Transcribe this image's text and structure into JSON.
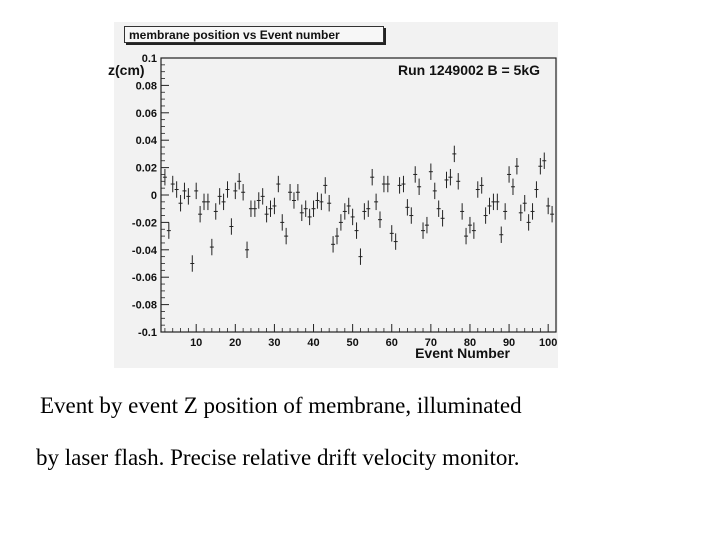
{
  "caption": {
    "line1": "Event by event Z position of membrane, illuminated",
    "line2": "by laser flash. Precise relative drift velocity monitor."
  },
  "chart_data": {
    "type": "scatter",
    "title": "membrane position vs Event number",
    "annotation": "Run 1249002 B = 5kG",
    "xlabel": "Event Number",
    "ylabel": "z(cm)",
    "xlim": [
      1,
      102
    ],
    "ylim": [
      -0.1,
      0.1
    ],
    "x_ticks": [
      "10",
      "20",
      "30",
      "40",
      "50",
      "60",
      "70",
      "80",
      "90",
      "100"
    ],
    "y_ticks": [
      "0.1",
      "0.08",
      "0.06",
      "0.04",
      "0.02",
      "0",
      "-0.02",
      "-0.04",
      "-0.06",
      "-0.08",
      "-0.1"
    ],
    "error_bars": true,
    "grid": false,
    "series": [
      {
        "x": [
          2,
          3,
          4,
          5,
          6,
          7,
          8,
          9,
          10,
          11,
          12,
          13,
          14,
          15,
          16,
          17,
          18,
          19,
          20,
          21,
          22,
          23,
          24,
          25,
          26,
          27,
          28,
          29,
          30,
          31,
          32,
          33,
          34,
          35,
          36,
          37,
          38,
          39,
          40,
          41,
          42,
          43,
          44,
          45,
          46,
          47,
          48,
          49,
          50,
          51,
          52,
          53,
          54,
          55,
          56,
          57,
          58,
          59,
          60,
          61,
          62,
          63,
          64,
          65,
          66,
          67,
          68,
          69,
          70,
          71,
          72,
          73,
          74,
          75,
          76,
          77,
          78,
          79,
          80,
          81,
          82,
          83,
          84,
          85,
          86,
          87,
          88,
          89,
          90,
          91,
          92,
          93,
          94,
          95,
          96,
          97,
          98,
          99,
          100,
          101
        ],
        "y": [
          0.013,
          -0.026,
          0.008,
          0.004,
          -0.006,
          0.003,
          -0.001,
          -0.05,
          0.003,
          -0.014,
          -0.005,
          -0.005,
          -0.038,
          -0.012,
          -0.001,
          -0.005,
          0.004,
          -0.023,
          0.003,
          0.01,
          0.002,
          -0.04,
          -0.01,
          -0.01,
          -0.004,
          -0.001,
          -0.014,
          -0.01,
          -0.008,
          0.008,
          -0.02,
          -0.03,
          0.002,
          -0.004,
          0.002,
          -0.013,
          -0.01,
          -0.016,
          -0.01,
          -0.004,
          -0.005,
          0.007,
          -0.006,
          -0.036,
          -0.03,
          -0.02,
          -0.012,
          -0.008,
          -0.016,
          -0.026,
          -0.045,
          -0.012,
          -0.01,
          0.013,
          -0.005,
          -0.018,
          0.008,
          0.008,
          -0.028,
          -0.034,
          0.007,
          0.008,
          -0.009,
          -0.015,
          0.015,
          0.006,
          -0.026,
          -0.022,
          0.017,
          0.003,
          -0.01,
          -0.017,
          0.011,
          0.013,
          0.03,
          0.01,
          -0.012,
          -0.03,
          -0.022,
          -0.026,
          0.004,
          0.007,
          -0.015,
          -0.008,
          -0.005,
          -0.005,
          -0.029,
          -0.012,
          0.015,
          0.006,
          0.021,
          -0.013,
          -0.006,
          -0.02,
          -0.012,
          0.004,
          0.021,
          0.025,
          -0.008,
          -0.014
        ],
        "yerr": 0.006
      }
    ]
  }
}
